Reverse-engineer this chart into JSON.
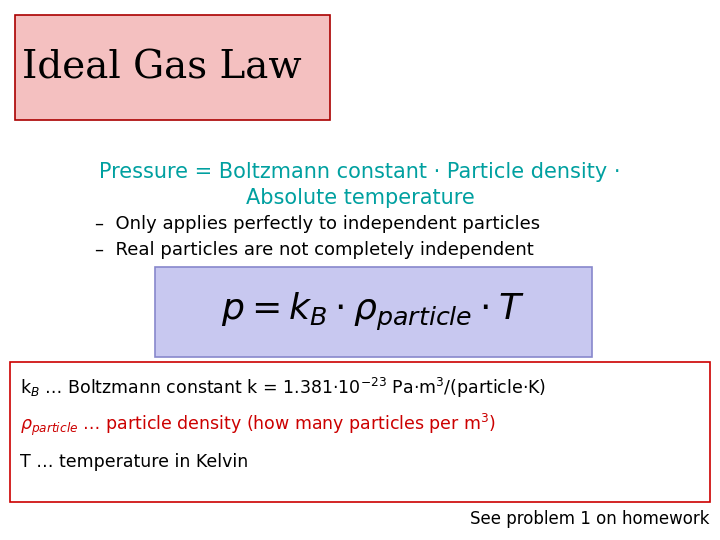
{
  "title": "Ideal Gas Law",
  "title_box_color": "#f4c0c0",
  "title_box_edge": "#aa0000",
  "title_fontsize": 28,
  "subtitle_line1": "Pressure = Boltzmann constant · Particle density ·",
  "subtitle_line2": "Absolute temperature",
  "subtitle_color": "#00a0a0",
  "subtitle_fontsize": 15,
  "bullet1": "–  Only applies perfectly to independent particles",
  "bullet2": "–  Real particles are not completely independent",
  "bullet_fontsize": 13,
  "formula": "$p = k_B \\cdot \\rho_{particle} \\cdot T$",
  "formula_box_color": "#c8c8f0",
  "formula_box_edge": "#8888cc",
  "formula_fontsize": 26,
  "info_box_edge": "#cc0000",
  "info_box_bg": "#ffffff",
  "kb_line": "k$_B$ … Boltzmann constant k = 1.381·10$^{-23}$ Pa·m$^3$/(particle·K)",
  "kb_fontsize": 12.5,
  "rho_full": "$\\rho_{particle}$ … particle density (how many particles per m$^3$)",
  "rho_color": "#cc0000",
  "rho_fontsize": 12.5,
  "T_line": "T … temperature in Kelvin",
  "T_fontsize": 12.5,
  "footer": "See problem 1 on homework",
  "footer_fontsize": 12,
  "bg_color": "#ffffff"
}
